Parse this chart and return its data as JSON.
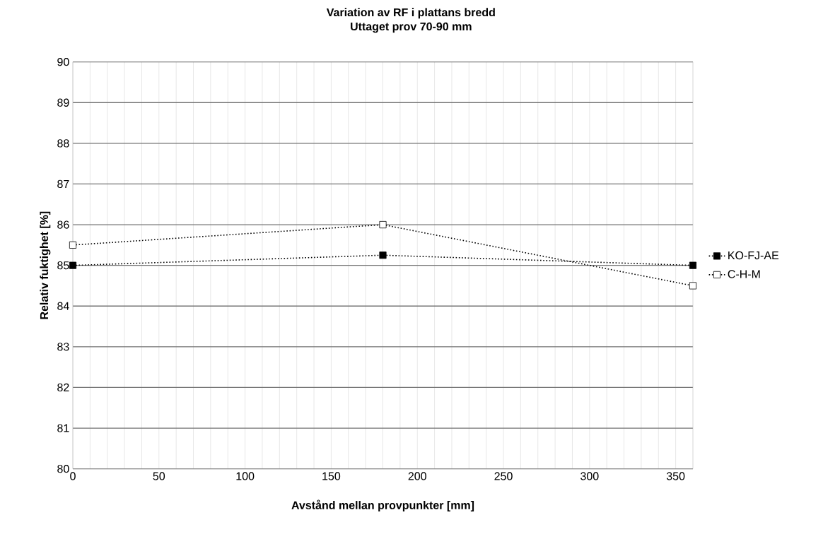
{
  "chart_data": {
    "type": "line",
    "title": "Variation av RF i plattans bredd",
    "subtitle": "Uttaget prov 70-90 mm",
    "xlabel": "Avstånd mellan provpunkter [mm]",
    "ylabel": "Relativ fuktighet [%]",
    "x": [
      0,
      180,
      360
    ],
    "series": [
      {
        "name": "KO-FJ-AE",
        "color": "#000000",
        "values": [
          85,
          85.25,
          85
        ]
      },
      {
        "name": "C-H-M",
        "color": "#ffffff",
        "values": [
          85.5,
          86,
          84.5
        ]
      }
    ],
    "xlim": [
      0,
      360
    ],
    "ylim": [
      80,
      90
    ],
    "xticks": [
      0,
      {
        "value": 10,
        "label": null
      },
      {
        "value": 20,
        "label": null
      },
      {
        "value": 30,
        "label": null
      },
      {
        "value": 40,
        "label": null
      },
      50,
      {
        "value": 60,
        "label": null
      },
      {
        "value": 70,
        "label": null
      },
      {
        "value": 80,
        "label": null
      },
      {
        "value": 90,
        "label": null
      },
      100,
      {
        "value": 110,
        "label": null
      },
      {
        "value": 120,
        "label": null
      },
      {
        "value": 130,
        "label": null
      },
      {
        "value": 140,
        "label": null
      },
      150,
      {
        "value": 160,
        "label": null
      },
      {
        "value": 170,
        "label": null
      },
      {
        "value": 180,
        "label": null
      },
      {
        "value": 190,
        "label": null
      },
      200,
      {
        "value": 210,
        "label": null
      },
      {
        "value": 220,
        "label": null
      },
      {
        "value": 230,
        "label": null
      },
      {
        "value": 240,
        "label": null
      },
      250,
      {
        "value": 260,
        "label": null
      },
      {
        "value": 270,
        "label": null
      },
      {
        "value": 280,
        "label": null
      },
      {
        "value": 290,
        "label": null
      },
      300,
      {
        "value": 310,
        "label": null
      },
      {
        "value": 320,
        "label": null
      },
      {
        "value": 330,
        "label": null
      },
      {
        "value": 340,
        "label": null
      },
      350
    ],
    "yticks": [
      80,
      81,
      82,
      83,
      84,
      85,
      86,
      87,
      88,
      89,
      90
    ],
    "grid": true,
    "legend": "right",
    "marker": "square",
    "line_style": "dotted"
  }
}
